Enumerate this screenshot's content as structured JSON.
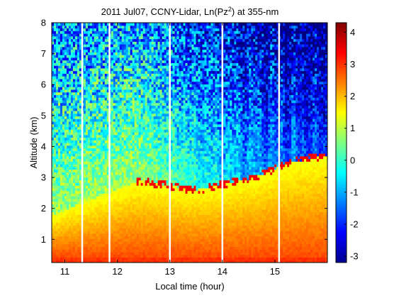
{
  "chart_data": {
    "type": "heatmap",
    "title_main": "2011 Jul07, CCNY-Lidar, Ln(Pz",
    "title_sup": "2",
    "title_tail": ") at 355-nm",
    "xlabel": "Local time (hour)",
    "ylabel": "Altitude (km)",
    "xlim": [
      10.75,
      16.0
    ],
    "ylim": [
      0.25,
      8.0
    ],
    "xticks": [
      "11",
      "12",
      "13",
      "14",
      "15"
    ],
    "yticks": [
      "1",
      "2",
      "3",
      "4",
      "5",
      "6",
      "7",
      "8"
    ],
    "colorbar": {
      "range": [
        -3.2,
        4.3
      ],
      "ticks": [
        "4",
        "3",
        "2",
        "1",
        "0",
        "-1",
        "-2",
        "-3"
      ],
      "colormap": "jet"
    },
    "data_gaps_hours": [
      11.33,
      11.85,
      13.0,
      14.0,
      15.08
    ],
    "description_series": [
      {
        "x": 10.8,
        "boundary_layer_top_km": 1.8
      },
      {
        "x": 12.4,
        "boundary_layer_top_km": 2.9
      },
      {
        "x": 13.5,
        "boundary_layer_top_km": 2.6
      },
      {
        "x": 14.6,
        "boundary_layer_top_km": 3.0
      },
      {
        "x": 15.3,
        "boundary_layer_top_km": 3.5
      },
      {
        "x": 15.9,
        "boundary_layer_top_km": 3.7
      }
    ]
  }
}
